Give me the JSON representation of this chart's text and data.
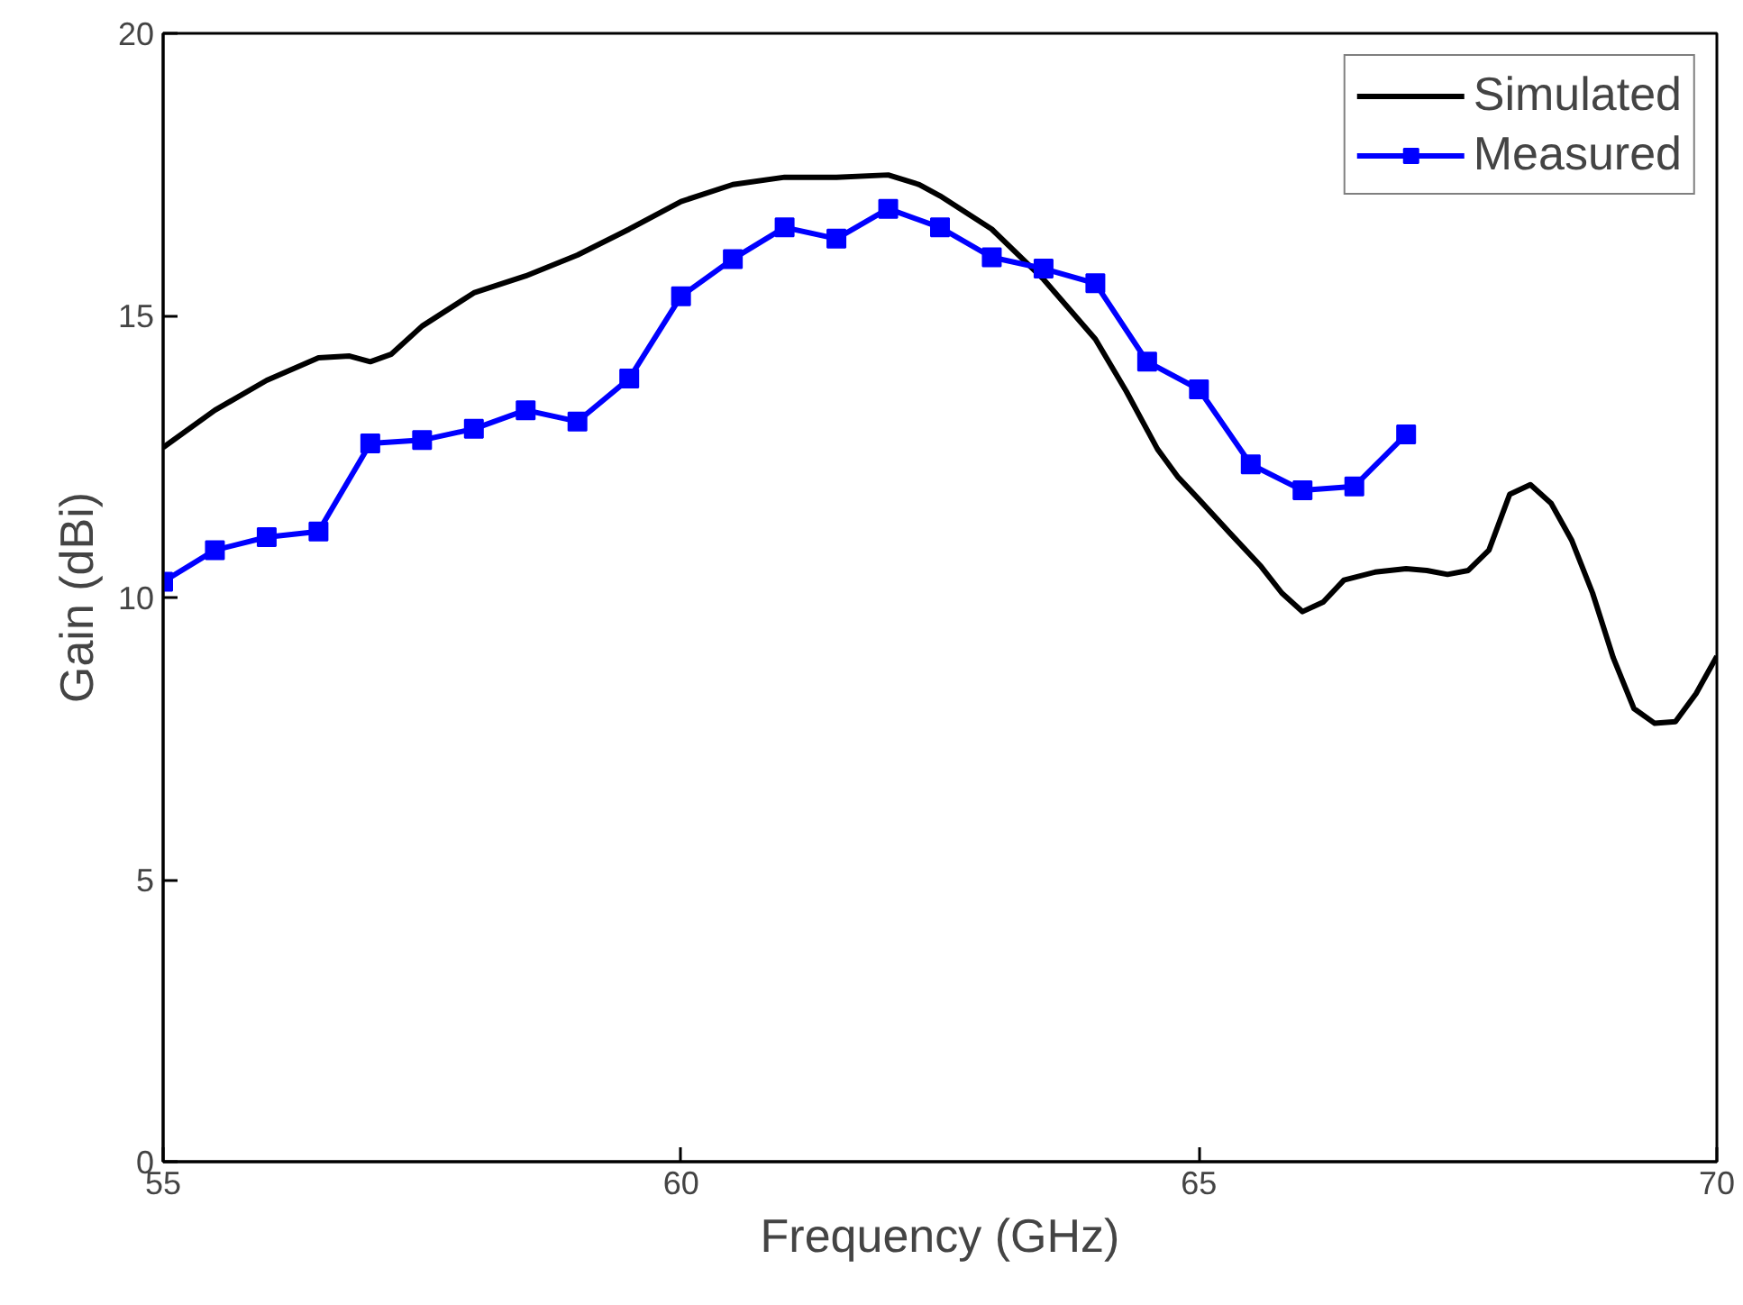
{
  "chart_data": {
    "type": "line",
    "xlabel": "Frequency (GHz)",
    "ylabel": "Gain (dBi)",
    "xlim": [
      55,
      70
    ],
    "xticks": [
      55,
      60,
      65,
      70
    ],
    "ylim": [
      0,
      20
    ],
    "yticks": [
      0,
      5,
      10,
      15,
      20
    ],
    "grid": false,
    "legend": "top right",
    "line_style": "solid",
    "series": [
      {
        "name": "Simulated",
        "color": "#000000",
        "marker": "none",
        "x": [
          55,
          55.5,
          56,
          56.5,
          56.8,
          57,
          57.2,
          57.5,
          58,
          58.5,
          59,
          59.5,
          60,
          60.5,
          61,
          61.5,
          62,
          62.3,
          62.5,
          63,
          63.5,
          64,
          64.3,
          64.6,
          64.8,
          65,
          65.3,
          65.6,
          65.8,
          66,
          66.2,
          66.4,
          66.7,
          67,
          67.2,
          67.4,
          67.6,
          67.8,
          68,
          68.2,
          68.4,
          68.6,
          68.8,
          69,
          69.2,
          69.4,
          69.6,
          69.8,
          70
        ],
        "values": [
          12.66,
          13.32,
          13.85,
          14.25,
          14.28,
          14.18,
          14.31,
          14.81,
          15.4,
          15.7,
          16.07,
          16.53,
          17.02,
          17.32,
          17.45,
          17.45,
          17.49,
          17.32,
          17.12,
          16.53,
          15.64,
          14.58,
          13.65,
          12.63,
          12.13,
          11.74,
          11.14,
          10.55,
          10.08,
          9.75,
          9.92,
          10.31,
          10.45,
          10.51,
          10.48,
          10.41,
          10.48,
          10.84,
          11.83,
          12.0,
          11.67,
          11.01,
          10.08,
          8.93,
          8.03,
          7.77,
          7.8,
          8.3,
          8.96
        ]
      },
      {
        "name": "Measured",
        "color": "#0000ff",
        "marker": "square",
        "x": [
          55,
          55.5,
          56,
          56.5,
          57,
          57.5,
          58,
          58.5,
          59,
          59.5,
          60,
          60.5,
          61,
          61.5,
          62,
          62.5,
          63,
          63.5,
          64,
          64.5,
          65,
          65.5,
          66,
          66.5,
          67
        ],
        "values": [
          10.28,
          10.84,
          11.07,
          11.17,
          12.73,
          12.79,
          12.99,
          13.32,
          13.12,
          13.88,
          15.34,
          16.0,
          16.56,
          16.36,
          16.89,
          16.56,
          16.03,
          15.83,
          15.57,
          14.18,
          13.69,
          12.36,
          11.9,
          11.97,
          12.89
        ]
      }
    ]
  }
}
